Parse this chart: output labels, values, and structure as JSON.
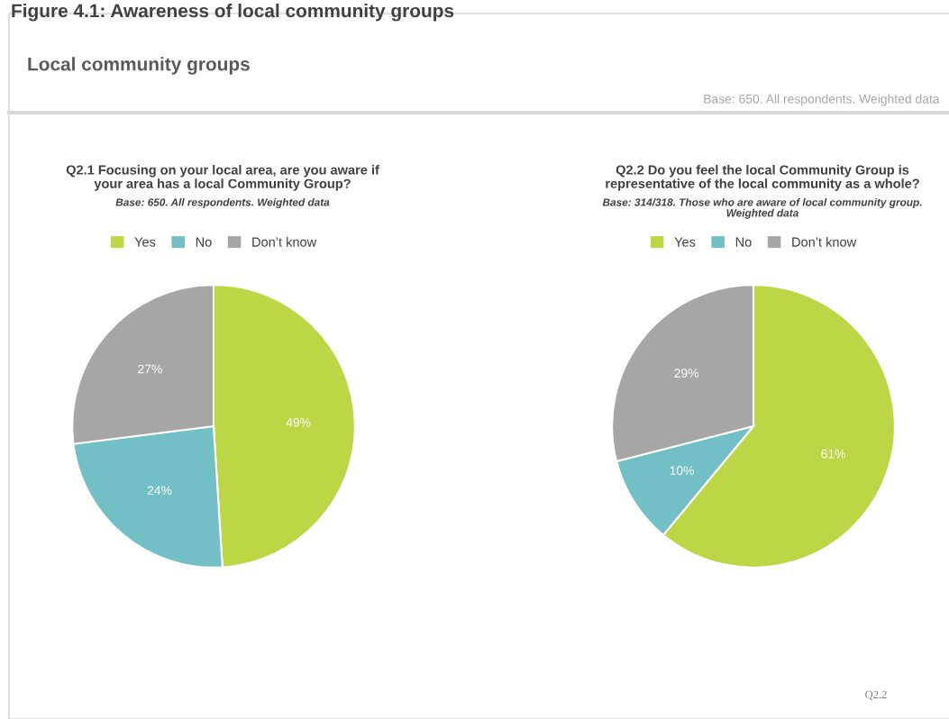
{
  "chart_data": [
    {
      "type": "pie",
      "title": "Q2.1 Focusing on your local area, are you aware if\nyour area has a local Community Group?",
      "subtitle": "Base: 650. All respondents. Weighted data",
      "categories": [
        "Yes",
        "No",
        "Don’t know"
      ],
      "values": [
        49,
        24,
        27
      ],
      "value_labels": [
        "49%",
        "24%",
        "27%"
      ],
      "colors": [
        "#bcd746",
        "#72bfc5",
        "#a6a6a6"
      ],
      "legend": "top",
      "annotations": [
        "Figure 4.1: Awareness of local community groups",
        "Local community groups",
        "Base: 650. All respondents. Weighted data"
      ]
    },
    {
      "type": "pie",
      "title": "Q2.2 Do you feel the local Community Group is\nrepresentative of the local community as a whole?",
      "subtitle": "Base: 314/318. Those who are aware of local community group.\nWeighted data",
      "categories": [
        "Yes",
        "No",
        "Don’t know"
      ],
      "values": [
        61,
        10,
        29
      ],
      "value_labels": [
        "61%",
        "10%",
        "29%"
      ],
      "colors": [
        "#bcd746",
        "#72bfc5",
        "#a6a6a6"
      ],
      "legend": "top",
      "annotations": [
        "Q2.2"
      ]
    }
  ]
}
